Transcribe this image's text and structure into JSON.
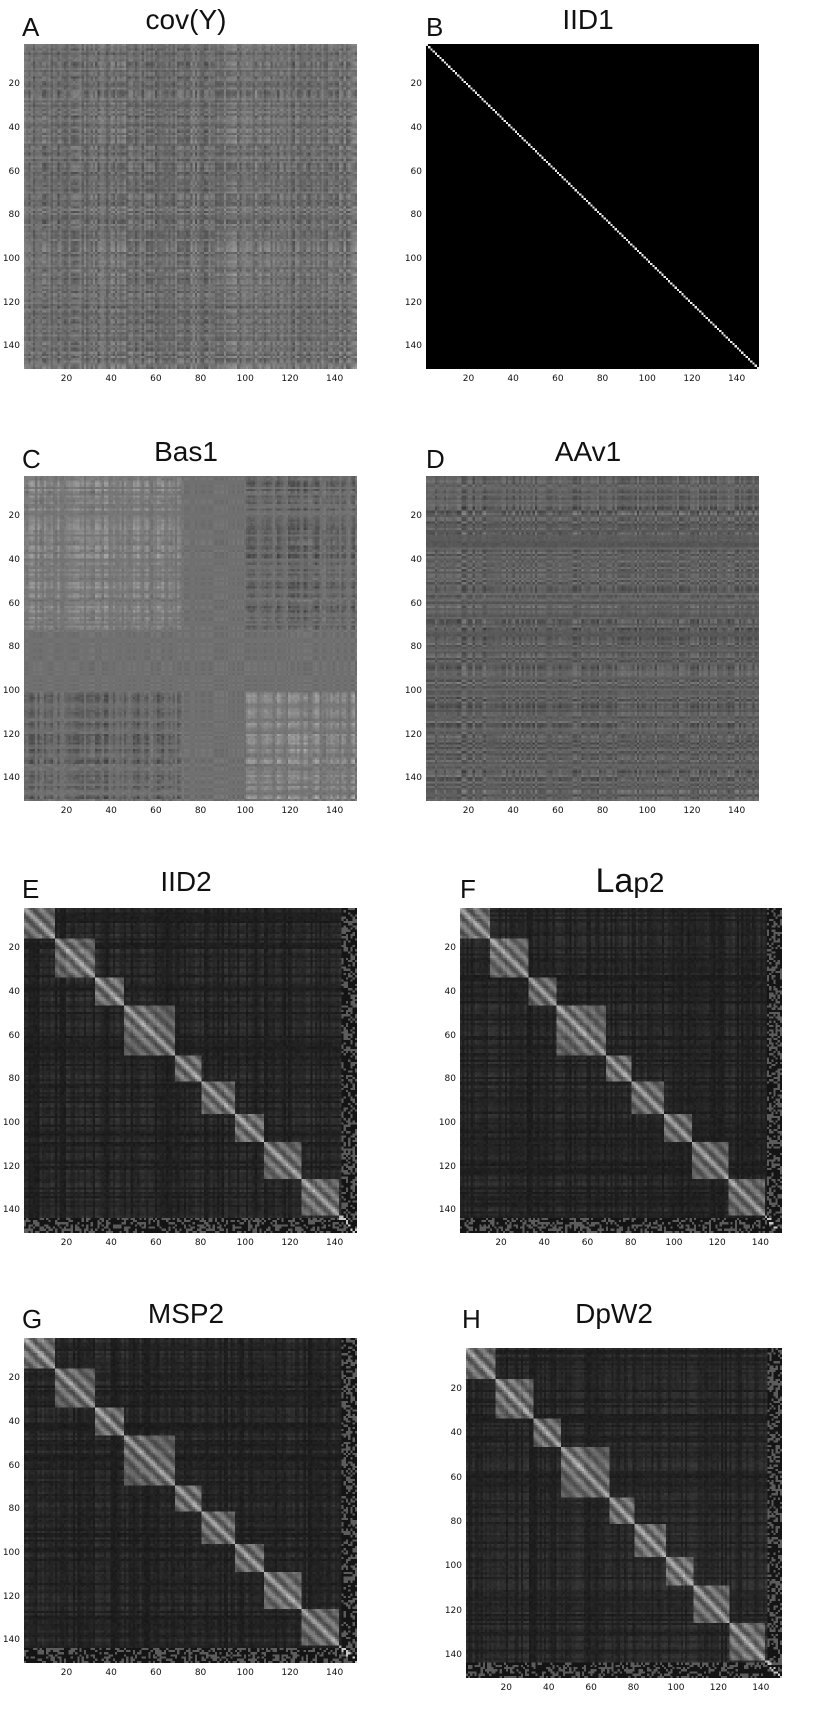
{
  "chart_data": [
    {
      "panel": "A",
      "title": "cov(Y)",
      "type": "heatmap",
      "pattern": "covariance",
      "x_ticks": [
        20,
        40,
        60,
        80,
        100,
        120,
        140
      ],
      "y_ticks": [
        20,
        40,
        60,
        80,
        100,
        120,
        140
      ],
      "xlim": [
        1,
        150
      ],
      "ylim": [
        1,
        150
      ]
    },
    {
      "panel": "B",
      "title": "IID1",
      "type": "heatmap",
      "pattern": "identity",
      "x_ticks": [
        20,
        40,
        60,
        80,
        100,
        120,
        140
      ],
      "y_ticks": [
        20,
        40,
        60,
        80,
        100,
        120,
        140
      ],
      "xlim": [
        1,
        150
      ],
      "ylim": [
        1,
        150
      ]
    },
    {
      "panel": "C",
      "title": "Bas1",
      "type": "heatmap",
      "pattern": "basis",
      "x_ticks": [
        20,
        40,
        60,
        80,
        100,
        120,
        140
      ],
      "y_ticks": [
        20,
        40,
        60,
        80,
        100,
        120,
        140
      ],
      "xlim": [
        1,
        150
      ],
      "ylim": [
        1,
        150
      ]
    },
    {
      "panel": "D",
      "title": "AAv1",
      "type": "heatmap",
      "pattern": "average",
      "x_ticks": [
        20,
        40,
        60,
        80,
        100,
        120,
        140
      ],
      "y_ticks": [
        20,
        40,
        60,
        80,
        100,
        120,
        140
      ],
      "xlim": [
        1,
        150
      ],
      "ylim": [
        1,
        150
      ]
    },
    {
      "panel": "E",
      "title": "IID2",
      "type": "heatmap",
      "pattern": "block",
      "x_ticks": [
        20,
        40,
        60,
        80,
        100,
        120,
        140
      ],
      "y_ticks": [
        20,
        40,
        60,
        80,
        100,
        120,
        140
      ],
      "xlim": [
        1,
        150
      ],
      "ylim": [
        1,
        150
      ]
    },
    {
      "panel": "F",
      "title_big": "La",
      "title_small": "p2",
      "type": "heatmap",
      "pattern": "block",
      "x_ticks": [
        20,
        40,
        60,
        80,
        100,
        120,
        140
      ],
      "y_ticks": [
        20,
        40,
        60,
        80,
        100,
        120,
        140
      ],
      "xlim": [
        1,
        150
      ],
      "ylim": [
        1,
        150
      ]
    },
    {
      "panel": "G",
      "title": "MSP2",
      "type": "heatmap",
      "pattern": "block",
      "x_ticks": [
        20,
        40,
        60,
        80,
        100,
        120,
        140
      ],
      "y_ticks": [
        20,
        40,
        60,
        80,
        100,
        120,
        140
      ],
      "xlim": [
        1,
        150
      ],
      "ylim": [
        1,
        150
      ]
    },
    {
      "panel": "H",
      "title": "DpW2",
      "type": "heatmap",
      "pattern": "block",
      "x_ticks": [
        20,
        40,
        60,
        80,
        100,
        120,
        140
      ],
      "y_ticks": [
        20,
        40,
        60,
        80,
        100,
        120,
        140
      ],
      "xlim": [
        1,
        150
      ],
      "ylim": [
        1,
        150
      ]
    }
  ]
}
